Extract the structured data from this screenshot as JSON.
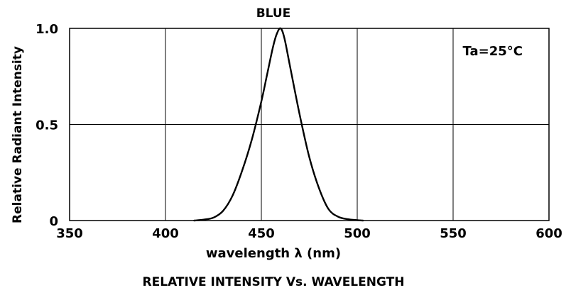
{
  "chart_data": {
    "type": "line",
    "title": "BLUE",
    "xlabel": "wavelength  λ (nm)",
    "ylabel": "Relative  Radiant  Intensity",
    "caption": "RELATIVE  INTENSITY  Vs.  WAVELENGTH",
    "annotation": "Ta=25°C",
    "xlim": [
      350,
      600
    ],
    "ylim": [
      0,
      1.0
    ],
    "x_ticks": [
      350,
      400,
      450,
      500,
      550,
      600
    ],
    "y_ticks": [
      0,
      0.5,
      1.0
    ],
    "x_tick_labels": [
      "350",
      "400",
      "450",
      "500",
      "550",
      "600"
    ],
    "y_tick_labels": [
      "0",
      "0.5",
      "1.0"
    ],
    "grid": true,
    "series": [
      {
        "x": [
          415,
          420,
          425,
          430,
          435,
          440,
          445,
          450,
          453,
          456,
          458,
          460,
          462,
          465,
          470,
          475,
          480,
          485,
          490,
          495,
          500,
          503
        ],
        "y": [
          0.0,
          0.005,
          0.015,
          0.05,
          0.13,
          0.26,
          0.42,
          0.62,
          0.76,
          0.9,
          0.97,
          1.0,
          0.95,
          0.8,
          0.55,
          0.33,
          0.17,
          0.06,
          0.02,
          0.007,
          0.002,
          0.0
        ]
      }
    ]
  }
}
